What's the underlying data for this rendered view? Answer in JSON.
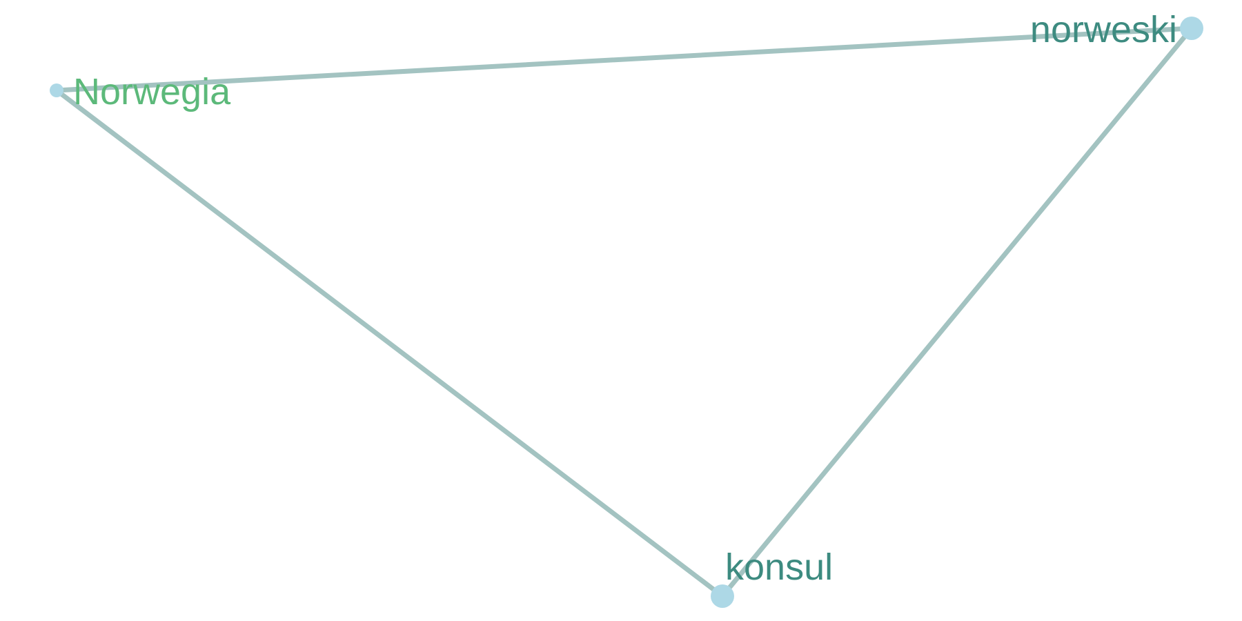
{
  "graph": {
    "nodes": [
      {
        "id": "norwegia",
        "label": "Norwegia",
        "label_color": "#5cb97a",
        "node_color": "#add8e6",
        "size": "small"
      },
      {
        "id": "norweski",
        "label": "norweski",
        "label_color": "#3d8b80",
        "node_color": "#add8e6",
        "size": "large"
      },
      {
        "id": "konsul",
        "label": "konsul",
        "label_color": "#3d8b80",
        "node_color": "#add8e6",
        "size": "large"
      }
    ],
    "edges": [
      {
        "source": "norwegia",
        "target": "norweski"
      },
      {
        "source": "norwegia",
        "target": "konsul"
      },
      {
        "source": "norweski",
        "target": "konsul"
      }
    ],
    "edge_color": "#a3c3c1"
  }
}
